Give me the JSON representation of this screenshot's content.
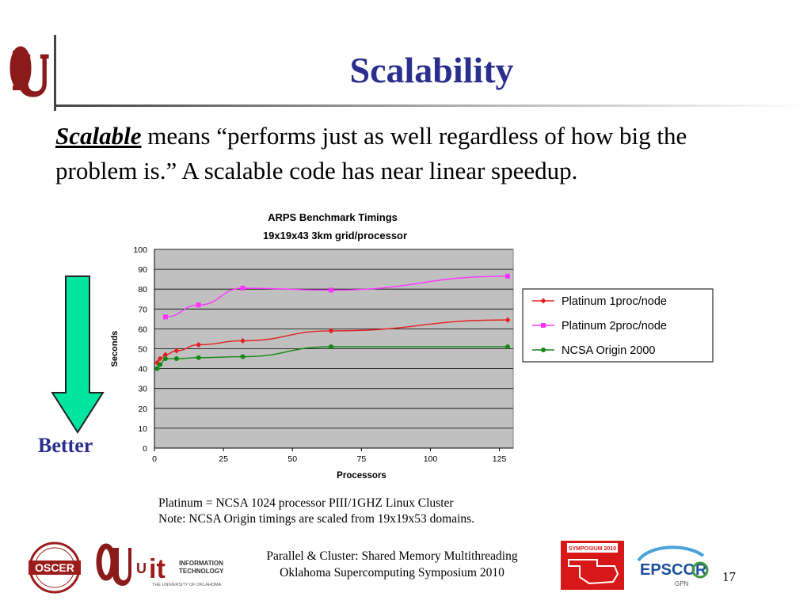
{
  "slide": {
    "title": "Scalability",
    "intro_term": "Scalable",
    "intro_rest": " means “performs just as well regardless of how big the problem is.” A scalable code has near linear speedup.",
    "better_label": "Better",
    "notes": [
      "Platinum = NCSA 1024 processor PIII/1GHZ Linux Cluster",
      "Note: NCSA Origin timings are scaled from 19x19x53 domains."
    ],
    "footer": [
      "Parallel & Cluster: Shared Memory Multithreading",
      "Oklahoma Supercomputing Symposium 2010"
    ],
    "page_number": "17",
    "logos": {
      "oscer_text": "OSCER",
      "it_text": "it",
      "it_line1": "INFORMATION",
      "it_line2": "TECHNOLOGY",
      "it_line3": "THE UNIVERSITY OF OKLAHOMA",
      "symposium_text": "SYMPOSIUM 2010",
      "epscor_text": "EPSCOR"
    }
  },
  "chart_data": {
    "type": "line",
    "title": "ARPS Benchmark Timings",
    "subtitle": "19x19x43 3km grid/processor",
    "xlabel": "Processors",
    "ylabel": "Seconds",
    "xlim": [
      0,
      130
    ],
    "ylim": [
      0,
      100
    ],
    "xticks": [
      0,
      25,
      50,
      75,
      100,
      125
    ],
    "yticks": [
      0,
      10,
      20,
      30,
      40,
      50,
      60,
      70,
      80,
      90,
      100
    ],
    "grid": "horizontal",
    "legend_position": "right",
    "background": "#c0c0c0",
    "series": [
      {
        "name": "Platinum 1proc/node",
        "color": "#e32020",
        "marker": "diamond",
        "x": [
          1,
          2,
          4,
          8,
          16,
          32,
          64,
          128
        ],
        "y": [
          43,
          45,
          47,
          49,
          52,
          54,
          59,
          64.5
        ]
      },
      {
        "name": "Platinum 2proc/node",
        "color": "#ff33ff",
        "marker": "square",
        "x": [
          4,
          16,
          32,
          64,
          128
        ],
        "y": [
          66,
          72,
          80.5,
          79.5,
          86.5
        ]
      },
      {
        "name": "NCSA Origin 2000",
        "color": "#118811",
        "marker": "circle",
        "x": [
          1,
          2,
          4,
          8,
          16,
          32,
          64,
          128
        ],
        "y": [
          40,
          42,
          45,
          45,
          45.5,
          46,
          51,
          51
        ]
      }
    ]
  }
}
